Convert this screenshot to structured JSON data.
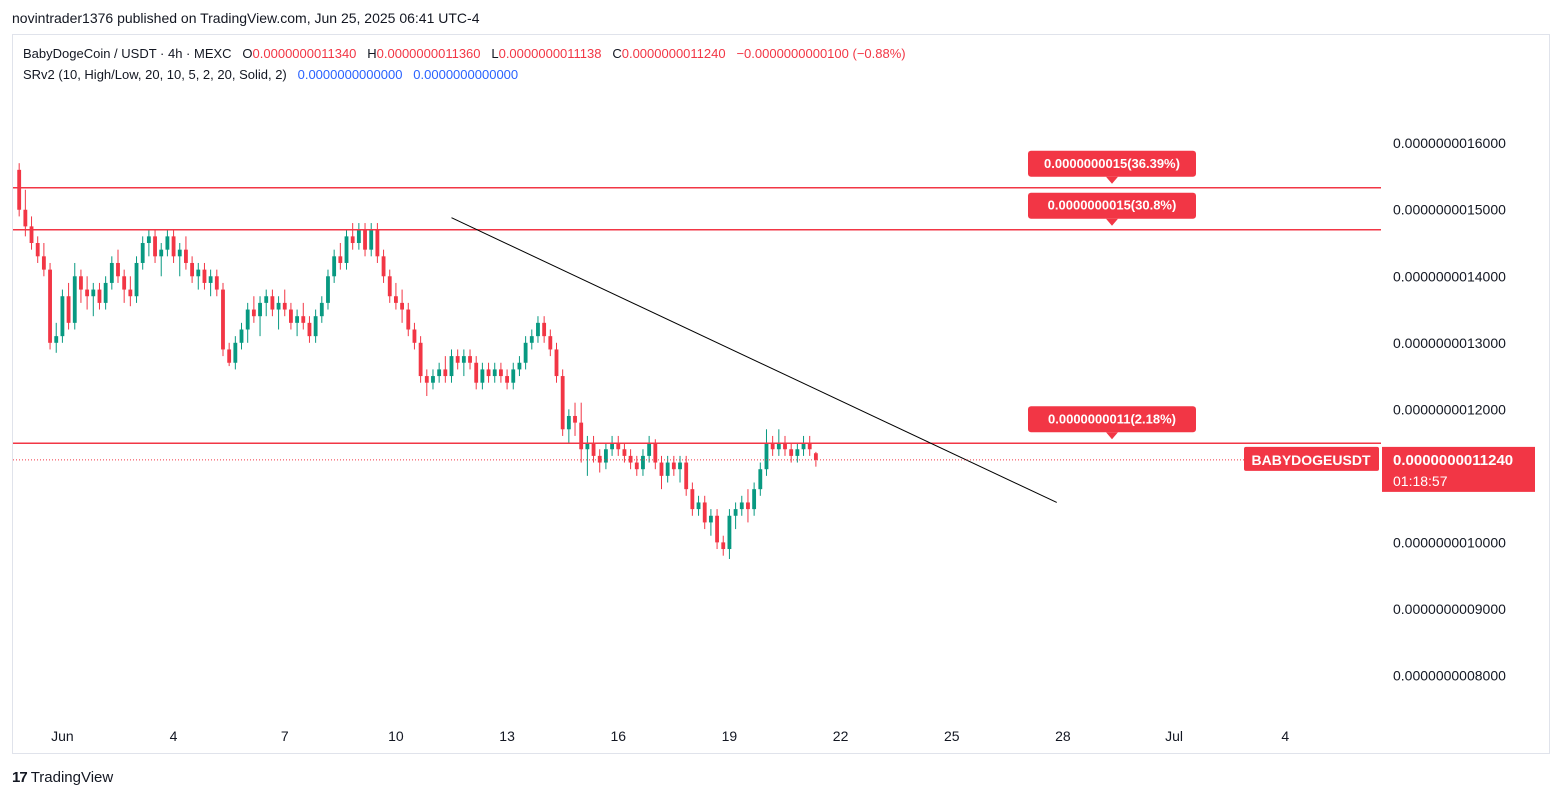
{
  "header": {
    "published_text": "novintrader1376 published on TradingView.com, Jun 25, 2025 06:41 UTC-4"
  },
  "legend": {
    "symbol_text": "BabyDogeCoin / USDT · 4h · MEXC",
    "o_label": "O",
    "o_value": "0.0000000011340",
    "h_label": "H",
    "h_value": "0.0000000011360",
    "l_label": "L",
    "l_value": "0.0000000011138",
    "c_label": "C",
    "c_value": "0.0000000011240",
    "change_value": "−0.0000000000100 (−0.88%)",
    "indicator_text": "SRv2 (10, High/Low, 20, 10, 5, 2, 20, Solid, 2)",
    "indicator_value_1": "0.0000000000000",
    "indicator_value_2": "0.0000000000000"
  },
  "footer": {
    "brand_mark": "17",
    "brand_text": "TradingView"
  },
  "colors": {
    "up": "#089981",
    "down": "#f23645",
    "level_line": "#f23645",
    "trendline": "#000000",
    "axis_text": "#131722",
    "price_badge": "#f23645"
  },
  "chart_data": {
    "type": "candlestick",
    "symbol": "BABYDOGEUSDT",
    "interval": "4h",
    "exchange": "MEXC",
    "y_ticks": [
      "0.0000000016000",
      "0.0000000015000",
      "0.0000000014000",
      "0.0000000013000",
      "0.0000000012000",
      "0.0000000011000",
      "0.0000000010000",
      "0.0000000009000",
      "0.0000000008000"
    ],
    "y_tick_values": [
      16,
      15,
      14,
      13,
      12,
      11,
      10,
      9,
      8
    ],
    "y_unit_scale": "1e-10",
    "ylim": [
      7.3,
      16.8
    ],
    "x_ticks": [
      "Jun",
      "4",
      "7",
      "10",
      "13",
      "16",
      "19",
      "22",
      "25",
      "28",
      "Jul",
      "4"
    ],
    "x_tick_dates": [
      "2025-06-01",
      "2025-06-04",
      "2025-06-07",
      "2025-06-10",
      "2025-06-13",
      "2025-06-16",
      "2025-06-19",
      "2025-06-22",
      "2025-06-25",
      "2025-06-28",
      "2025-07-01",
      "2025-07-04"
    ],
    "xlim": [
      "2025-05-30T16:00",
      "2025-07-06T14:00"
    ],
    "levels": [
      {
        "value": 15.33,
        "label": "0.0000000015(36.39%)"
      },
      {
        "value": 14.7,
        "label": "0.0000000015(30.8%)"
      },
      {
        "value": 11.49,
        "label": "0.0000000011(2.18%)"
      }
    ],
    "trendline": {
      "start": [
        "2025-06-11T12:00",
        14.88
      ],
      "end": [
        "2025-06-27T20:00",
        10.6
      ]
    },
    "last_price": {
      "label": "BABYDOGEUSDT",
      "value": "0.0000000011240",
      "countdown": "01:18:57",
      "numeric": 11.24
    },
    "start_date": "2025-05-30T20:00",
    "candle_interval_hours": 4,
    "candles": [
      [
        15.6,
        15.7,
        14.9,
        15.0
      ],
      [
        15.0,
        15.3,
        14.6,
        14.75
      ],
      [
        14.75,
        14.9,
        14.4,
        14.5
      ],
      [
        14.5,
        14.6,
        14.2,
        14.3
      ],
      [
        14.3,
        14.5,
        14.0,
        14.1
      ],
      [
        14.1,
        14.2,
        12.9,
        13.0
      ],
      [
        13.0,
        13.3,
        12.85,
        13.1
      ],
      [
        13.1,
        13.8,
        13.0,
        13.7
      ],
      [
        13.7,
        13.9,
        13.2,
        13.3
      ],
      [
        13.3,
        14.2,
        13.2,
        14.0
      ],
      [
        14.0,
        14.1,
        13.6,
        13.8
      ],
      [
        13.8,
        14.0,
        13.5,
        13.7
      ],
      [
        13.7,
        13.9,
        13.4,
        13.8
      ],
      [
        13.8,
        13.9,
        13.5,
        13.6
      ],
      [
        13.6,
        14.0,
        13.5,
        13.9
      ],
      [
        13.9,
        14.3,
        13.8,
        14.2
      ],
      [
        14.2,
        14.4,
        13.9,
        14.0
      ],
      [
        14.0,
        14.1,
        13.6,
        13.8
      ],
      [
        13.8,
        14.0,
        13.55,
        13.7
      ],
      [
        13.7,
        14.3,
        13.6,
        14.2
      ],
      [
        14.2,
        14.6,
        14.1,
        14.5
      ],
      [
        14.5,
        14.7,
        14.3,
        14.6
      ],
      [
        14.6,
        14.7,
        14.2,
        14.3
      ],
      [
        14.3,
        14.5,
        14.0,
        14.4
      ],
      [
        14.4,
        14.7,
        14.3,
        14.6
      ],
      [
        14.6,
        14.7,
        14.2,
        14.3
      ],
      [
        14.3,
        14.5,
        14.0,
        14.4
      ],
      [
        14.4,
        14.6,
        14.1,
        14.2
      ],
      [
        14.2,
        14.3,
        13.9,
        14.0
      ],
      [
        14.0,
        14.2,
        13.8,
        14.1
      ],
      [
        14.1,
        14.2,
        13.8,
        13.9
      ],
      [
        13.9,
        14.1,
        13.7,
        14.0
      ],
      [
        14.0,
        14.1,
        13.7,
        13.8
      ],
      [
        13.8,
        13.9,
        12.8,
        12.9
      ],
      [
        12.9,
        13.0,
        12.65,
        12.7
      ],
      [
        12.7,
        13.1,
        12.6,
        13.0
      ],
      [
        13.0,
        13.3,
        12.9,
        13.2
      ],
      [
        13.2,
        13.6,
        13.0,
        13.5
      ],
      [
        13.5,
        13.7,
        13.3,
        13.4
      ],
      [
        13.4,
        13.7,
        13.1,
        13.6
      ],
      [
        13.6,
        13.8,
        13.4,
        13.7
      ],
      [
        13.7,
        13.8,
        13.4,
        13.5
      ],
      [
        13.5,
        13.7,
        13.2,
        13.6
      ],
      [
        13.6,
        13.8,
        13.4,
        13.5
      ],
      [
        13.5,
        13.6,
        13.2,
        13.3
      ],
      [
        13.3,
        13.5,
        13.1,
        13.4
      ],
      [
        13.4,
        13.6,
        13.2,
        13.3
      ],
      [
        13.3,
        13.4,
        13.0,
        13.1
      ],
      [
        13.1,
        13.5,
        13.0,
        13.4
      ],
      [
        13.4,
        13.7,
        13.3,
        13.6
      ],
      [
        13.6,
        14.1,
        13.5,
        14.0
      ],
      [
        14.0,
        14.4,
        13.9,
        14.3
      ],
      [
        14.3,
        14.5,
        14.1,
        14.2
      ],
      [
        14.2,
        14.7,
        14.1,
        14.6
      ],
      [
        14.6,
        14.8,
        14.4,
        14.5
      ],
      [
        14.5,
        14.8,
        14.4,
        14.7
      ],
      [
        14.7,
        14.8,
        14.3,
        14.4
      ],
      [
        14.4,
        14.8,
        14.3,
        14.7
      ],
      [
        14.7,
        14.8,
        14.2,
        14.3
      ],
      [
        14.3,
        14.4,
        13.9,
        14.0
      ],
      [
        14.0,
        14.1,
        13.6,
        13.7
      ],
      [
        13.7,
        13.9,
        13.5,
        13.6
      ],
      [
        13.6,
        13.8,
        13.3,
        13.5
      ],
      [
        13.5,
        13.6,
        13.1,
        13.2
      ],
      [
        13.2,
        13.3,
        12.9,
        13.0
      ],
      [
        13.0,
        13.1,
        12.4,
        12.5
      ],
      [
        12.5,
        12.6,
        12.2,
        12.4
      ],
      [
        12.4,
        12.6,
        12.3,
        12.5
      ],
      [
        12.5,
        12.7,
        12.4,
        12.6
      ],
      [
        12.6,
        12.8,
        12.4,
        12.5
      ],
      [
        12.5,
        12.9,
        12.4,
        12.8
      ],
      [
        12.8,
        12.9,
        12.6,
        12.7
      ],
      [
        12.7,
        12.9,
        12.5,
        12.8
      ],
      [
        12.8,
        12.9,
        12.6,
        12.7
      ],
      [
        12.7,
        12.8,
        12.3,
        12.4
      ],
      [
        12.4,
        12.7,
        12.3,
        12.6
      ],
      [
        12.6,
        12.7,
        12.4,
        12.5
      ],
      [
        12.5,
        12.7,
        12.4,
        12.6
      ],
      [
        12.6,
        12.7,
        12.4,
        12.5
      ],
      [
        12.5,
        12.6,
        12.3,
        12.4
      ],
      [
        12.4,
        12.7,
        12.3,
        12.6
      ],
      [
        12.6,
        12.8,
        12.5,
        12.7
      ],
      [
        12.7,
        13.1,
        12.6,
        13.0
      ],
      [
        13.0,
        13.2,
        12.9,
        13.1
      ],
      [
        13.1,
        13.4,
        13.0,
        13.3
      ],
      [
        13.3,
        13.4,
        13.0,
        13.1
      ],
      [
        13.1,
        13.2,
        12.8,
        12.9
      ],
      [
        12.9,
        13.0,
        12.4,
        12.5
      ],
      [
        12.5,
        12.6,
        11.6,
        11.7
      ],
      [
        11.7,
        12.0,
        11.5,
        11.9
      ],
      [
        11.9,
        12.1,
        11.6,
        11.8
      ],
      [
        11.8,
        12.1,
        11.2,
        11.4
      ],
      [
        11.4,
        11.6,
        11.0,
        11.5
      ],
      [
        11.5,
        11.6,
        11.2,
        11.3
      ],
      [
        11.3,
        11.4,
        11.05,
        11.2
      ],
      [
        11.2,
        11.5,
        11.1,
        11.4
      ],
      [
        11.4,
        11.6,
        11.3,
        11.5
      ],
      [
        11.5,
        11.6,
        11.3,
        11.4
      ],
      [
        11.4,
        11.5,
        11.2,
        11.3
      ],
      [
        11.3,
        11.4,
        11.1,
        11.2
      ],
      [
        11.2,
        11.3,
        11.0,
        11.1
      ],
      [
        11.1,
        11.4,
        11.0,
        11.3
      ],
      [
        11.3,
        11.6,
        11.2,
        11.5
      ],
      [
        11.5,
        11.55,
        11.1,
        11.2
      ],
      [
        11.2,
        11.3,
        10.8,
        11.0
      ],
      [
        11.0,
        11.3,
        10.9,
        11.2
      ],
      [
        11.2,
        11.3,
        11.0,
        11.1
      ],
      [
        11.1,
        11.3,
        10.9,
        11.2
      ],
      [
        11.2,
        11.3,
        10.7,
        10.8
      ],
      [
        10.8,
        10.9,
        10.4,
        10.5
      ],
      [
        10.5,
        10.7,
        10.4,
        10.6
      ],
      [
        10.6,
        10.7,
        10.2,
        10.3
      ],
      [
        10.3,
        10.5,
        10.1,
        10.4
      ],
      [
        10.4,
        10.5,
        9.9,
        10.0
      ],
      [
        10.0,
        10.1,
        9.8,
        9.9
      ],
      [
        9.9,
        10.5,
        9.75,
        10.4
      ],
      [
        10.4,
        10.6,
        10.2,
        10.5
      ],
      [
        10.5,
        10.7,
        10.4,
        10.6
      ],
      [
        10.6,
        10.8,
        10.3,
        10.5
      ],
      [
        10.5,
        10.9,
        10.4,
        10.8
      ],
      [
        10.8,
        11.2,
        10.7,
        11.1
      ],
      [
        11.1,
        11.7,
        11.0,
        11.5
      ],
      [
        11.5,
        11.6,
        11.3,
        11.4
      ],
      [
        11.4,
        11.7,
        11.3,
        11.5
      ],
      [
        11.5,
        11.6,
        11.3,
        11.4
      ],
      [
        11.4,
        11.5,
        11.2,
        11.3
      ],
      [
        11.3,
        11.5,
        11.2,
        11.4
      ],
      [
        11.4,
        11.6,
        11.3,
        11.5
      ],
      [
        11.5,
        11.6,
        11.3,
        11.4
      ],
      [
        11.34,
        11.36,
        11.138,
        11.24
      ]
    ]
  }
}
